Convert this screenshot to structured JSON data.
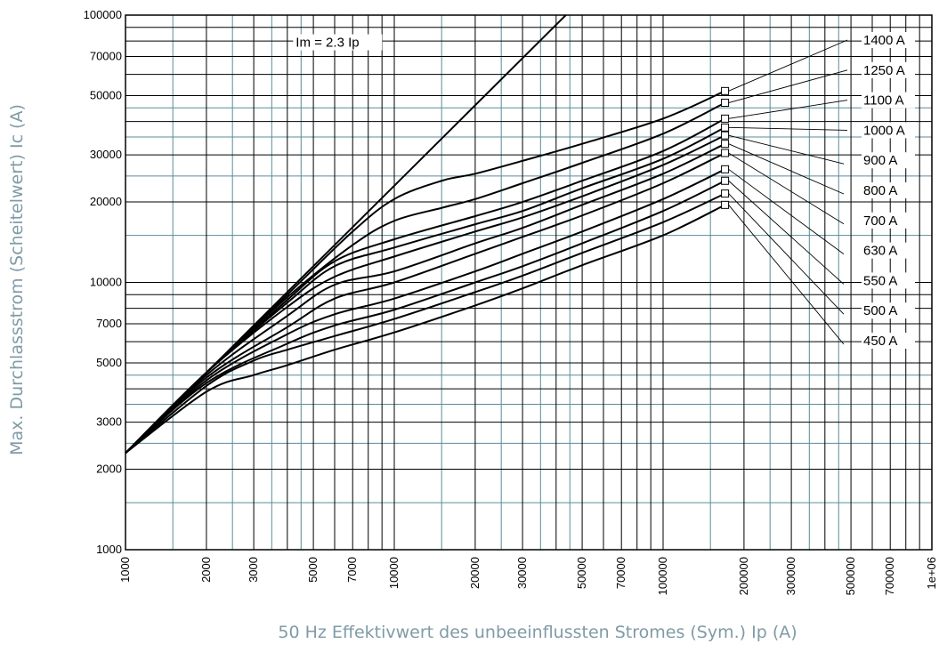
{
  "chart_data": {
    "type": "line",
    "xscale": "log",
    "yscale": "log",
    "xlim": [
      1000,
      1000000
    ],
    "ylim": [
      1000,
      100000
    ],
    "xlabel": "50 Hz Effektivwert des unbeeinflussten Stromes (Sym.) Ip (A)",
    "ylabel": "Max. Durchlassstrom (Scheitelwert) Ic (A)",
    "xticks": [
      1000,
      2000,
      3000,
      5000,
      7000,
      10000,
      20000,
      30000,
      50000,
      70000,
      100000,
      200000,
      300000,
      500000,
      700000,
      1000000
    ],
    "xtick_labels": [
      "1000",
      "2000",
      "3000",
      "5000",
      "7000",
      "10000",
      "20000",
      "30000",
      "50000",
      "70000",
      "100000",
      "200000",
      "300000",
      "500000",
      "700000",
      "1e+06"
    ],
    "yticks": [
      1000,
      2000,
      3000,
      5000,
      7000,
      10000,
      20000,
      30000,
      50000,
      70000,
      100000
    ],
    "ytick_labels": [
      "1000",
      "2000",
      "3000",
      "5000",
      "7000",
      "10000",
      "20000",
      "30000",
      "50000",
      "70000",
      "100000"
    ],
    "grid": true,
    "reference_line": {
      "label": "Im = 2.3 Ip",
      "factor": 2.3
    },
    "series": [
      {
        "name": "1400 A",
        "points": [
          [
            1000,
            2300
          ],
          [
            2000,
            4600
          ],
          [
            4000,
            9000
          ],
          [
            7000,
            15500
          ],
          [
            10000,
            20500
          ],
          [
            15000,
            24000
          ],
          [
            20000,
            25500
          ],
          [
            30000,
            28500
          ],
          [
            50000,
            33000
          ],
          [
            100000,
            41000
          ],
          [
            170000,
            52000
          ]
        ]
      },
      {
        "name": "1250 A",
        "points": [
          [
            1000,
            2300
          ],
          [
            2000,
            4600
          ],
          [
            4000,
            8800
          ],
          [
            7000,
            13800
          ],
          [
            10000,
            17000
          ],
          [
            15000,
            19000
          ],
          [
            20000,
            20500
          ],
          [
            30000,
            23500
          ],
          [
            50000,
            28000
          ],
          [
            100000,
            36000
          ],
          [
            170000,
            47000
          ]
        ]
      },
      {
        "name": "1100 A",
        "points": [
          [
            1000,
            2300
          ],
          [
            2000,
            4600
          ],
          [
            4000,
            8600
          ],
          [
            6000,
            12000
          ],
          [
            10000,
            14500
          ],
          [
            20000,
            17700
          ],
          [
            30000,
            20000
          ],
          [
            50000,
            24000
          ],
          [
            100000,
            31000
          ],
          [
            170000,
            41000
          ]
        ]
      },
      {
        "name": "1000 A",
        "points": [
          [
            1000,
            2300
          ],
          [
            2000,
            4600
          ],
          [
            4000,
            8400
          ],
          [
            6000,
            11500
          ],
          [
            10000,
            13500
          ],
          [
            20000,
            16500
          ],
          [
            30000,
            18500
          ],
          [
            50000,
            22500
          ],
          [
            100000,
            29000
          ],
          [
            170000,
            38000
          ]
        ]
      },
      {
        "name": "900 A",
        "points": [
          [
            1000,
            2300
          ],
          [
            2000,
            4600
          ],
          [
            4000,
            8100
          ],
          [
            6000,
            10500
          ],
          [
            10000,
            12500
          ],
          [
            20000,
            15500
          ],
          [
            30000,
            17500
          ],
          [
            50000,
            21000
          ],
          [
            100000,
            27500
          ],
          [
            170000,
            35500
          ]
        ]
      },
      {
        "name": "800 A",
        "points": [
          [
            1000,
            2300
          ],
          [
            2000,
            4500
          ],
          [
            4000,
            7500
          ],
          [
            6000,
            9800
          ],
          [
            10000,
            11000
          ],
          [
            20000,
            14000
          ],
          [
            30000,
            16000
          ],
          [
            50000,
            19500
          ],
          [
            100000,
            25500
          ],
          [
            170000,
            33000
          ]
        ]
      },
      {
        "name": "700 A",
        "points": [
          [
            1000,
            2300
          ],
          [
            2000,
            4400
          ],
          [
            4000,
            6800
          ],
          [
            6000,
            8700
          ],
          [
            10000,
            10000
          ],
          [
            20000,
            12800
          ],
          [
            30000,
            14800
          ],
          [
            50000,
            17800
          ],
          [
            100000,
            23500
          ],
          [
            170000,
            30500
          ]
        ]
      },
      {
        "name": "630 A",
        "points": [
          [
            1000,
            2300
          ],
          [
            2000,
            4300
          ],
          [
            4000,
            6400
          ],
          [
            6000,
            7600
          ],
          [
            10000,
            8700
          ],
          [
            20000,
            11000
          ],
          [
            30000,
            12800
          ],
          [
            50000,
            15500
          ],
          [
            100000,
            20500
          ],
          [
            170000,
            26500
          ]
        ]
      },
      {
        "name": "550 A",
        "points": [
          [
            1000,
            2300
          ],
          [
            2000,
            4200
          ],
          [
            4000,
            5900
          ],
          [
            6000,
            6900
          ],
          [
            10000,
            7900
          ],
          [
            20000,
            10000
          ],
          [
            30000,
            11500
          ],
          [
            50000,
            14000
          ],
          [
            100000,
            18500
          ],
          [
            170000,
            24000
          ]
        ]
      },
      {
        "name": "500 A",
        "points": [
          [
            1000,
            2300
          ],
          [
            2000,
            4100
          ],
          [
            3000,
            5100
          ],
          [
            4000,
            5600
          ],
          [
            6000,
            6300
          ],
          [
            10000,
            7300
          ],
          [
            20000,
            9200
          ],
          [
            30000,
            10600
          ],
          [
            50000,
            12900
          ],
          [
            100000,
            16800
          ],
          [
            170000,
            21500
          ]
        ]
      },
      {
        "name": "450 A",
        "points": [
          [
            1000,
            2300
          ],
          [
            2000,
            3900
          ],
          [
            3000,
            4500
          ],
          [
            4000,
            4900
          ],
          [
            6000,
            5600
          ],
          [
            10000,
            6500
          ],
          [
            20000,
            8200
          ],
          [
            30000,
            9500
          ],
          [
            50000,
            11600
          ],
          [
            100000,
            15000
          ],
          [
            170000,
            19500
          ]
        ]
      }
    ]
  },
  "colors": {
    "line": "#000000",
    "grid_dark": "#000000",
    "grid_light": "#5a8b99",
    "axis_title": "#7f9ba6"
  }
}
